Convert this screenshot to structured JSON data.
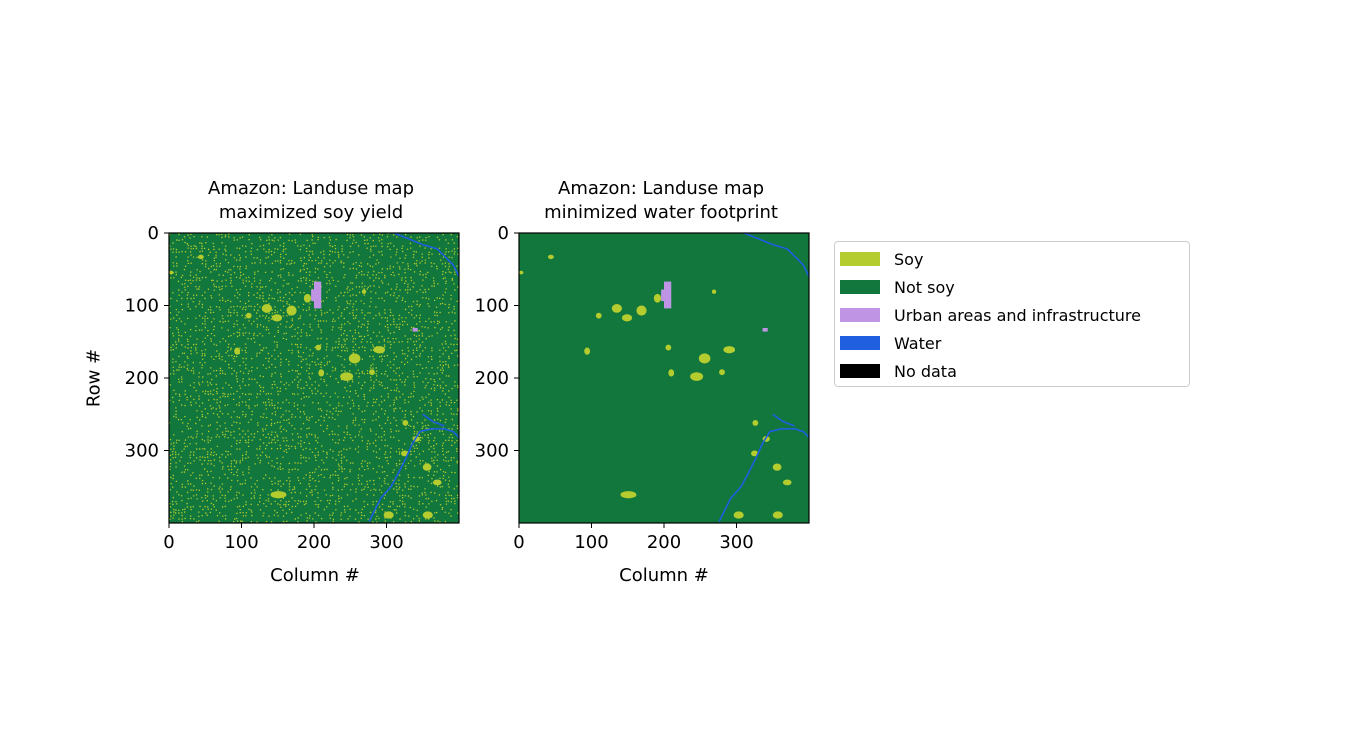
{
  "chart_data": [
    {
      "type": "heatmap",
      "title": "Amazon: Landuse map\nmaximized soy yield",
      "title_lines": [
        "Amazon: Landuse map",
        "maximized soy yield"
      ],
      "xlabel": "Column #",
      "ylabel": "Row #",
      "xlim": [
        0,
        400
      ],
      "ylim": [
        400,
        0
      ],
      "xticks": [
        0,
        100,
        200,
        300
      ],
      "yticks": [
        0,
        100,
        200,
        300
      ],
      "soy_density": 0.32,
      "urban_patches": [
        {
          "col": 200,
          "row": 67,
          "w": 10,
          "h": 12
        },
        {
          "col": 196,
          "row": 78,
          "w": 14,
          "h": 16
        },
        {
          "col": 200,
          "row": 92,
          "w": 10,
          "h": 12
        },
        {
          "col": 336,
          "row": 131,
          "w": 7,
          "h": 5
        }
      ],
      "soy_patches": [
        {
          "col": 128,
          "row": 98,
          "w": 14,
          "h": 12
        },
        {
          "col": 142,
          "row": 112,
          "w": 14,
          "h": 10
        },
        {
          "col": 162,
          "row": 100,
          "w": 14,
          "h": 14
        },
        {
          "col": 186,
          "row": 84,
          "w": 10,
          "h": 12
        },
        {
          "col": 90,
          "row": 158,
          "w": 8,
          "h": 10
        },
        {
          "col": 106,
          "row": 110,
          "w": 8,
          "h": 8
        },
        {
          "col": 202,
          "row": 154,
          "w": 8,
          "h": 8
        },
        {
          "col": 248,
          "row": 166,
          "w": 16,
          "h": 14
        },
        {
          "col": 236,
          "row": 192,
          "w": 18,
          "h": 12
        },
        {
          "col": 206,
          "row": 188,
          "w": 8,
          "h": 10
        },
        {
          "col": 282,
          "row": 156,
          "w": 16,
          "h": 10
        },
        {
          "col": 276,
          "row": 188,
          "w": 8,
          "h": 8
        },
        {
          "col": 140,
          "row": 356,
          "w": 22,
          "h": 10
        },
        {
          "col": 322,
          "row": 258,
          "w": 8,
          "h": 8
        },
        {
          "col": 336,
          "row": 280,
          "w": 10,
          "h": 8
        },
        {
          "col": 350,
          "row": 318,
          "w": 12,
          "h": 10
        },
        {
          "col": 364,
          "row": 340,
          "w": 12,
          "h": 8
        },
        {
          "col": 296,
          "row": 384,
          "w": 14,
          "h": 10
        },
        {
          "col": 350,
          "row": 384,
          "w": 14,
          "h": 10
        },
        {
          "col": 40,
          "row": 30,
          "w": 8,
          "h": 6
        },
        {
          "col": 0,
          "row": 52,
          "w": 6,
          "h": 5
        },
        {
          "col": 266,
          "row": 78,
          "w": 6,
          "h": 6
        },
        {
          "col": 320,
          "row": 300,
          "w": 10,
          "h": 8
        }
      ],
      "water_lines": [
        [
          [
            310,
            0
          ],
          [
            330,
            8
          ],
          [
            350,
            16
          ],
          [
            370,
            22
          ],
          [
            382,
            34
          ],
          [
            392,
            44
          ],
          [
            400,
            60
          ]
        ],
        [
          [
            276,
            398
          ],
          [
            284,
            382
          ],
          [
            292,
            366
          ],
          [
            306,
            350
          ],
          [
            316,
            332
          ],
          [
            326,
            312
          ],
          [
            336,
            290
          ],
          [
            346,
            274
          ],
          [
            362,
            270
          ],
          [
            380,
            270
          ],
          [
            392,
            274
          ],
          [
            400,
            282
          ]
        ],
        [
          [
            350,
            250
          ],
          [
            364,
            260
          ],
          [
            380,
            266
          ]
        ]
      ]
    },
    {
      "type": "heatmap",
      "title": "Amazon: Landuse map\nminimized water footprint",
      "title_lines": [
        "Amazon: Landuse map",
        "minimized water footprint"
      ],
      "xlabel": "Column #",
      "ylabel": "",
      "xlim": [
        0,
        400
      ],
      "ylim": [
        400,
        0
      ],
      "xticks": [
        0,
        100,
        200,
        300
      ],
      "yticks": [
        0,
        100,
        200,
        300
      ],
      "soy_density": 0.0,
      "urban_patches": [
        {
          "col": 200,
          "row": 67,
          "w": 10,
          "h": 12
        },
        {
          "col": 196,
          "row": 78,
          "w": 14,
          "h": 16
        },
        {
          "col": 200,
          "row": 92,
          "w": 10,
          "h": 12
        },
        {
          "col": 336,
          "row": 131,
          "w": 7,
          "h": 5
        }
      ],
      "soy_patches": [
        {
          "col": 128,
          "row": 98,
          "w": 14,
          "h": 12
        },
        {
          "col": 142,
          "row": 112,
          "w": 14,
          "h": 10
        },
        {
          "col": 162,
          "row": 100,
          "w": 14,
          "h": 14
        },
        {
          "col": 186,
          "row": 84,
          "w": 10,
          "h": 12
        },
        {
          "col": 90,
          "row": 158,
          "w": 8,
          "h": 10
        },
        {
          "col": 106,
          "row": 110,
          "w": 8,
          "h": 8
        },
        {
          "col": 202,
          "row": 154,
          "w": 8,
          "h": 8
        },
        {
          "col": 248,
          "row": 166,
          "w": 16,
          "h": 14
        },
        {
          "col": 236,
          "row": 192,
          "w": 18,
          "h": 12
        },
        {
          "col": 206,
          "row": 188,
          "w": 8,
          "h": 10
        },
        {
          "col": 282,
          "row": 156,
          "w": 16,
          "h": 10
        },
        {
          "col": 276,
          "row": 188,
          "w": 8,
          "h": 8
        },
        {
          "col": 140,
          "row": 356,
          "w": 22,
          "h": 10
        },
        {
          "col": 322,
          "row": 258,
          "w": 8,
          "h": 8
        },
        {
          "col": 336,
          "row": 280,
          "w": 10,
          "h": 8
        },
        {
          "col": 350,
          "row": 318,
          "w": 12,
          "h": 10
        },
        {
          "col": 364,
          "row": 340,
          "w": 12,
          "h": 8
        },
        {
          "col": 296,
          "row": 384,
          "w": 14,
          "h": 10
        },
        {
          "col": 350,
          "row": 384,
          "w": 14,
          "h": 10
        },
        {
          "col": 40,
          "row": 30,
          "w": 8,
          "h": 6
        },
        {
          "col": 0,
          "row": 52,
          "w": 6,
          "h": 5
        },
        {
          "col": 266,
          "row": 78,
          "w": 6,
          "h": 6
        },
        {
          "col": 320,
          "row": 300,
          "w": 10,
          "h": 8
        }
      ],
      "water_lines": [
        [
          [
            310,
            0
          ],
          [
            330,
            8
          ],
          [
            350,
            16
          ],
          [
            370,
            22
          ],
          [
            382,
            34
          ],
          [
            392,
            44
          ],
          [
            400,
            60
          ]
        ],
        [
          [
            276,
            398
          ],
          [
            284,
            382
          ],
          [
            292,
            366
          ],
          [
            306,
            350
          ],
          [
            316,
            332
          ],
          [
            326,
            312
          ],
          [
            336,
            290
          ],
          [
            346,
            274
          ],
          [
            362,
            270
          ],
          [
            380,
            270
          ],
          [
            392,
            274
          ],
          [
            400,
            282
          ]
        ],
        [
          [
            350,
            250
          ],
          [
            364,
            260
          ],
          [
            380,
            266
          ]
        ]
      ]
    }
  ],
  "legend": {
    "placement": "right",
    "items": [
      {
        "label": "Soy",
        "color": "#b5cc2e"
      },
      {
        "label": "Not soy",
        "color": "#11773c"
      },
      {
        "label": "Urban areas and infrastructure",
        "color": "#bf94e4"
      },
      {
        "label": "Water",
        "color": "#1f5fe0"
      },
      {
        "label": "No data",
        "color": "#000000"
      }
    ]
  }
}
